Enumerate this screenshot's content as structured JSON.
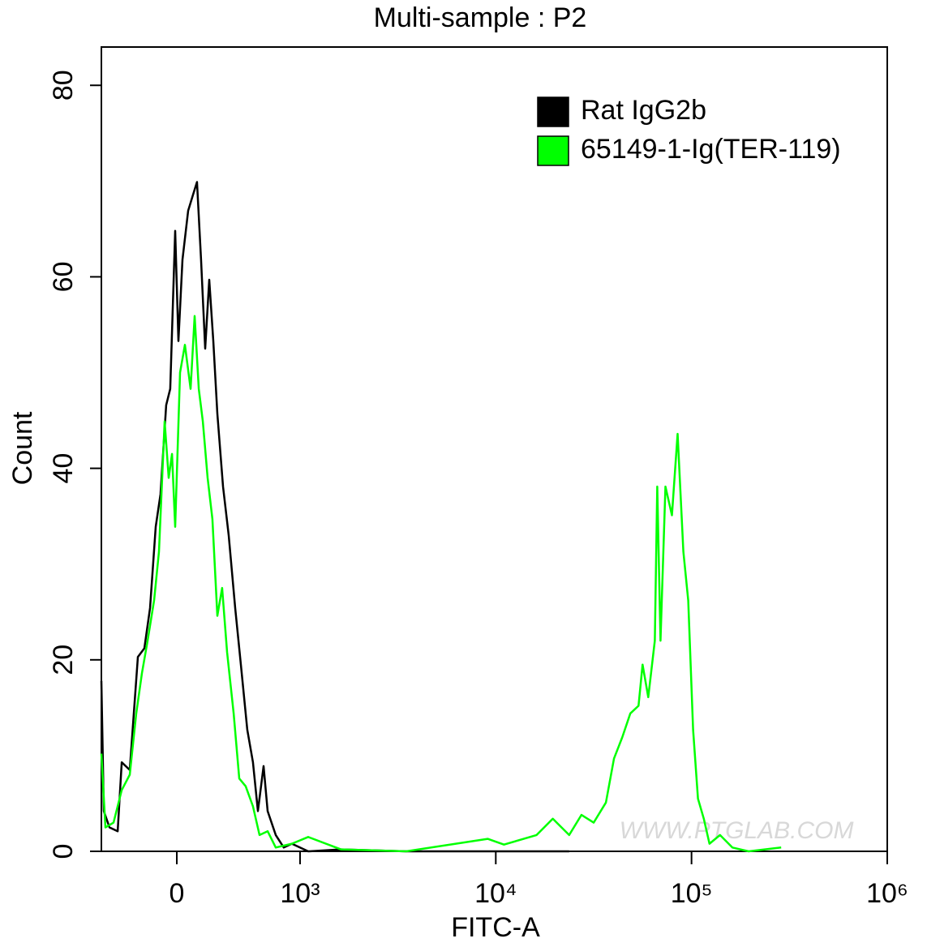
{
  "chart_data": {
    "type": "line",
    "title": "Multi-sample : P2",
    "x_label": "FITC-A",
    "y_label": "Count",
    "watermark": "WWW.PTGLAB.COM",
    "xscale": "biexponential",
    "xlim": [
      -612,
      1000000
    ],
    "ylim": [
      0,
      84
    ],
    "xticks": [
      0,
      {
        "value": 1000,
        "label": "10³"
      },
      {
        "value": 10000,
        "label": "10⁴"
      },
      {
        "value": 100000,
        "label": "10⁵"
      },
      {
        "value": 1000000,
        "label": "10⁶"
      }
    ],
    "yticks": [
      0,
      20,
      40,
      60,
      80
    ],
    "legend": "upper right",
    "series": [
      {
        "name": "Rat IgG2b",
        "color": "#000000",
        "x": [
          -612,
          -592,
          -546,
          -480,
          -447,
          -382,
          -316,
          -263,
          -217,
          -171,
          -132,
          -86,
          -53,
          -13,
          13,
          46,
          92,
          132,
          164,
          197,
          230,
          263,
          296,
          329,
          375,
          421,
          474,
          520,
          572,
          618,
          658,
          704,
          737,
          803,
          868,
          934,
          1101,
          1616,
          3481,
          23714
        ],
        "values": [
          17.8,
          4.2,
          2.5,
          2.1,
          9.3,
          8.5,
          20.3,
          21.2,
          25.4,
          33.9,
          37.3,
          46.6,
          48.3,
          64.8,
          53.3,
          61.8,
          66.9,
          68.6,
          69.9,
          61.8,
          52.5,
          59.7,
          53.3,
          45.7,
          38.1,
          33.0,
          25.4,
          19.5,
          12.7,
          9.3,
          4.2,
          8.9,
          4.2,
          1.7,
          0.4,
          0.8,
          0,
          0.2,
          0,
          0
        ]
      },
      {
        "name": "65149-1-Ig(TER-119)",
        "color": "#00ff00",
        "x": [
          -612,
          -579,
          -513,
          -447,
          -382,
          -329,
          -283,
          -237,
          -184,
          -145,
          -99,
          -66,
          -39,
          -13,
          26,
          66,
          112,
          145,
          178,
          211,
          250,
          289,
          329,
          368,
          408,
          461,
          507,
          559,
          618,
          671,
          737,
          803,
          934,
          1101,
          1616,
          3481,
          9087,
          11010,
          16160,
          19560,
          23714,
          27380,
          31623,
          36520,
          40190,
          44240,
          48700,
          53580,
          56230,
          60120,
          64940,
          66830,
          69450,
          73560,
          79430,
          84930,
          90850,
          96160,
          101900,
          107900,
          115500,
          123500,
          139900,
          161600,
          195800,
          287100
        ],
        "values": [
          10.2,
          2.5,
          3.0,
          6.4,
          8.0,
          14.4,
          18.6,
          22.0,
          26.2,
          31.3,
          44.9,
          39.0,
          41.5,
          33.9,
          50.0,
          52.9,
          48.3,
          55.9,
          48.3,
          44.9,
          39.0,
          34.7,
          24.6,
          27.5,
          20.8,
          14.4,
          7.6,
          6.8,
          4.7,
          1.7,
          2.1,
          0.4,
          0.8,
          1.5,
          0.2,
          0,
          1.3,
          0.7,
          1.7,
          3.4,
          1.7,
          3.8,
          3.0,
          5.1,
          9.7,
          11.9,
          14.4,
          15.2,
          19.5,
          16.1,
          22.0,
          38.1,
          22.0,
          38.1,
          35.1,
          43.6,
          31.3,
          26.2,
          12.7,
          5.5,
          3.4,
          0.8,
          1.7,
          0.4,
          0,
          0.4
        ]
      }
    ]
  }
}
